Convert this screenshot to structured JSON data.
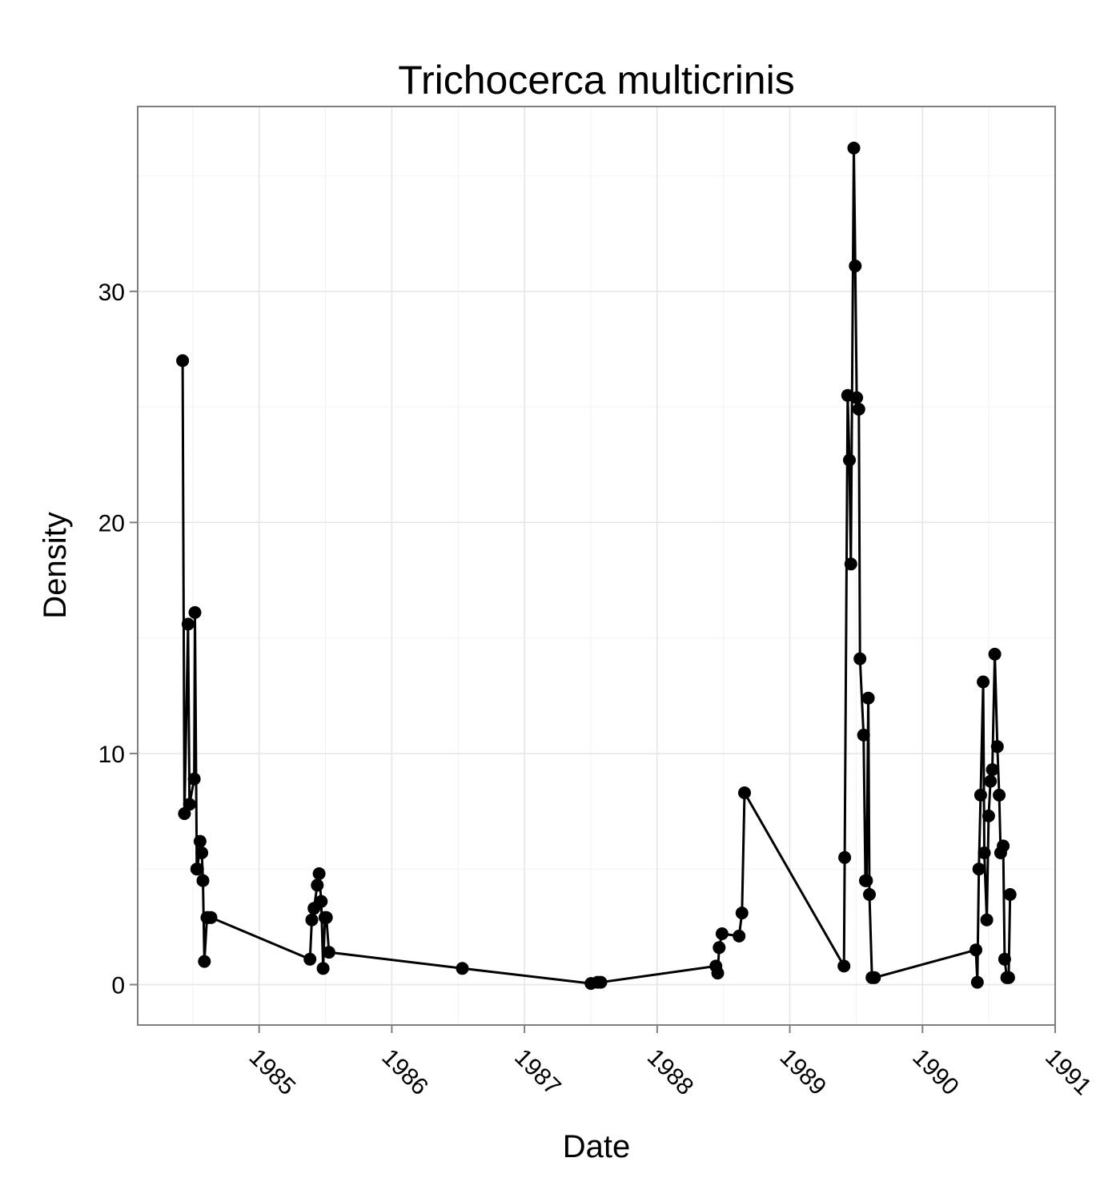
{
  "chart_data": {
    "type": "line",
    "title": "Trichocerca multicrinis",
    "xlabel": "Date",
    "ylabel": "Density",
    "x_tick_labels": [
      "1985",
      "1986",
      "1987",
      "1988",
      "1989",
      "1990",
      "1991"
    ],
    "y_tick_labels": [
      "0",
      "10",
      "20",
      "30"
    ],
    "x_ticks": [
      1985,
      1986,
      1987,
      1988,
      1989,
      1990,
      1991
    ],
    "y_ticks": [
      0,
      10,
      20,
      30
    ],
    "xlim": [
      "1984-02-01",
      "1991-01-01"
    ],
    "ylim": [
      -1.75,
      38
    ],
    "grid": true,
    "line_color": "#000000",
    "series": [
      {
        "x": [
          "1984-06-04",
          "1984-06-09",
          "1984-06-19",
          "1984-06-23",
          "1984-07-06",
          "1984-07-08",
          "1984-07-13",
          "1984-07-15",
          "1984-07-22",
          "1984-07-27",
          "1984-07-30",
          "1984-08-03",
          "1984-08-10",
          "1984-08-14",
          "1984-08-21",
          "1985-05-21",
          "1985-05-26",
          "1985-06-01",
          "1985-06-10",
          "1985-06-15",
          "1985-06-21",
          "1985-06-26",
          "1985-07-01",
          "1985-07-05",
          "1985-07-12",
          "1986-07-14",
          "1987-07-03",
          "1987-07-21",
          "1987-07-30",
          "1988-06-11",
          "1988-06-16",
          "1988-06-20",
          "1988-06-28",
          "1988-08-14",
          "1988-08-22",
          "1988-08-29",
          "1989-05-30",
          "1989-06-01",
          "1989-06-09",
          "1989-06-14",
          "1989-06-18",
          "1989-06-26",
          "1989-06-30",
          "1989-07-04",
          "1989-07-10",
          "1989-07-13",
          "1989-07-23",
          "1989-07-28",
          "1989-07-31",
          "1989-08-05",
          "1989-08-08",
          "1989-08-15",
          "1989-08-22",
          "1990-05-28",
          "1990-06-01",
          "1990-06-05",
          "1990-06-10",
          "1990-06-17",
          "1990-06-20",
          "1990-06-27",
          "1990-07-02",
          "1990-07-07",
          "1990-07-12",
          "1990-07-19",
          "1990-07-26",
          "1990-07-31",
          "1990-08-04",
          "1990-08-11",
          "1990-08-15",
          "1990-08-21",
          "1990-08-26",
          "1990-08-30"
        ],
        "y": [
          27.0,
          7.4,
          15.6,
          7.8,
          8.9,
          16.1,
          5.0,
          5.0,
          6.2,
          5.7,
          4.5,
          1.0,
          2.9,
          2.9,
          2.9,
          1.1,
          2.8,
          3.3,
          4.3,
          4.8,
          3.6,
          0.7,
          2.9,
          2.9,
          1.4,
          0.7,
          0.05,
          0.1,
          0.1,
          0.8,
          0.5,
          1.6,
          2.2,
          2.1,
          3.1,
          8.3,
          0.8,
          5.5,
          25.5,
          22.7,
          18.2,
          36.2,
          31.1,
          25.4,
          24.9,
          14.1,
          10.8,
          4.5,
          4.5,
          12.4,
          3.9,
          0.3,
          0.3,
          1.5,
          0.1,
          5.0,
          8.2,
          13.1,
          5.7,
          2.8,
          7.3,
          8.8,
          9.3,
          14.3,
          10.3,
          8.2,
          5.7,
          6.0,
          1.1,
          0.3,
          0.3,
          3.9
        ]
      }
    ]
  }
}
